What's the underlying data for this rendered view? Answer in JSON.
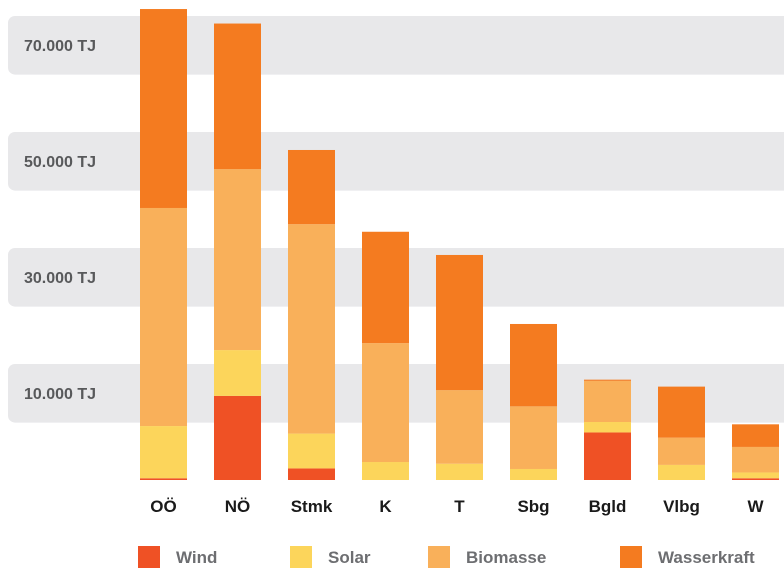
{
  "chart_data": {
    "type": "bar",
    "stacked": true,
    "categories": [
      "OÖ",
      "NÖ",
      "Stmk",
      "K",
      "T",
      "Sbg",
      "Bgld",
      "Vlbg",
      "W"
    ],
    "series": [
      {
        "name": "Wind",
        "color": "#ef5125",
        "values": [
          300,
          14500,
          2000,
          0,
          0,
          0,
          8200,
          0,
          300
        ]
      },
      {
        "name": "Solar",
        "color": "#fcd55b",
        "values": [
          9000,
          7900,
          6000,
          3100,
          2800,
          1900,
          1800,
          2600,
          1000
        ]
      },
      {
        "name": "Biomasse",
        "color": "#f9b05a",
        "values": [
          37600,
          31200,
          36100,
          20500,
          12700,
          10800,
          7100,
          4700,
          4400
        ]
      },
      {
        "name": "Wasserkraft",
        "color": "#f47b20",
        "values": [
          34300,
          25100,
          12800,
          19200,
          23300,
          14200,
          200,
          8800,
          3900
        ]
      }
    ],
    "yticks": [
      {
        "value": 10000,
        "label": "10.000 TJ"
      },
      {
        "value": 30000,
        "label": "30.000 TJ"
      },
      {
        "value": 50000,
        "label": "50.000 TJ"
      },
      {
        "value": 70000,
        "label": "70.000 TJ"
      }
    ],
    "ylim": [
      0,
      81300
    ],
    "grid": "alternating bands",
    "legend": "bottom",
    "title": "",
    "xlabel": "",
    "ylabel": ""
  }
}
